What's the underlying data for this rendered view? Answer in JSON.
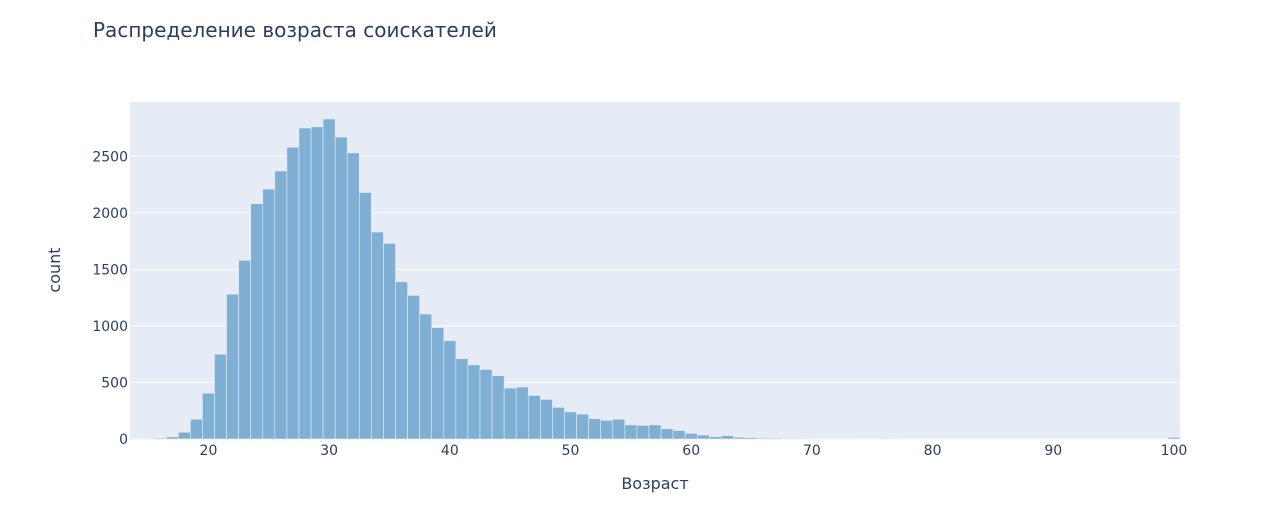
{
  "chart_data": {
    "type": "bar",
    "subtype": "histogram",
    "title": "Распределение возраста соискателей",
    "xlabel": "Возраст",
    "ylabel": "count",
    "xlim": [
      13.5,
      100.5
    ],
    "ylim": [
      0,
      2980
    ],
    "bin_width": 1,
    "x_ticks": [
      20,
      30,
      40,
      50,
      60,
      70,
      80,
      90,
      100
    ],
    "y_ticks": [
      0,
      500,
      1000,
      1500,
      2000,
      2500
    ],
    "grid": true,
    "legend": "none",
    "colors": {
      "bar": "#7fafd2",
      "plot_bg": "#e5ecf6",
      "grid": "#ffffff",
      "text": "#2a3f5f"
    },
    "x": [
      14,
      15,
      16,
      17,
      18,
      19,
      20,
      21,
      22,
      23,
      24,
      25,
      26,
      27,
      28,
      29,
      30,
      31,
      32,
      33,
      34,
      35,
      36,
      37,
      38,
      39,
      40,
      41,
      42,
      43,
      44,
      45,
      46,
      47,
      48,
      49,
      50,
      51,
      52,
      53,
      54,
      55,
      56,
      57,
      58,
      59,
      60,
      61,
      62,
      63,
      64,
      65,
      66,
      67,
      68,
      69,
      70,
      71,
      72,
      73,
      74,
      75,
      76,
      77,
      78,
      79,
      80,
      81,
      82,
      83,
      84,
      85,
      86,
      87,
      88,
      89,
      90,
      91,
      92,
      93,
      94,
      95,
      96,
      97,
      98,
      99,
      100
    ],
    "values": [
      3,
      4,
      8,
      18,
      60,
      175,
      405,
      750,
      1280,
      1580,
      2080,
      2210,
      2370,
      2580,
      2750,
      2760,
      2830,
      2670,
      2530,
      2180,
      1830,
      1730,
      1390,
      1270,
      1105,
      985,
      870,
      710,
      655,
      615,
      560,
      450,
      460,
      385,
      350,
      280,
      240,
      220,
      180,
      165,
      175,
      125,
      120,
      125,
      90,
      75,
      50,
      35,
      20,
      30,
      15,
      12,
      8,
      7,
      5,
      5,
      4,
      3,
      3,
      3,
      1,
      1,
      5,
      4,
      1,
      2,
      1,
      1,
      1,
      1,
      1,
      1,
      1,
      1,
      1,
      1,
      1,
      1,
      1,
      1,
      1,
      1,
      1,
      1,
      1,
      1,
      14
    ]
  }
}
